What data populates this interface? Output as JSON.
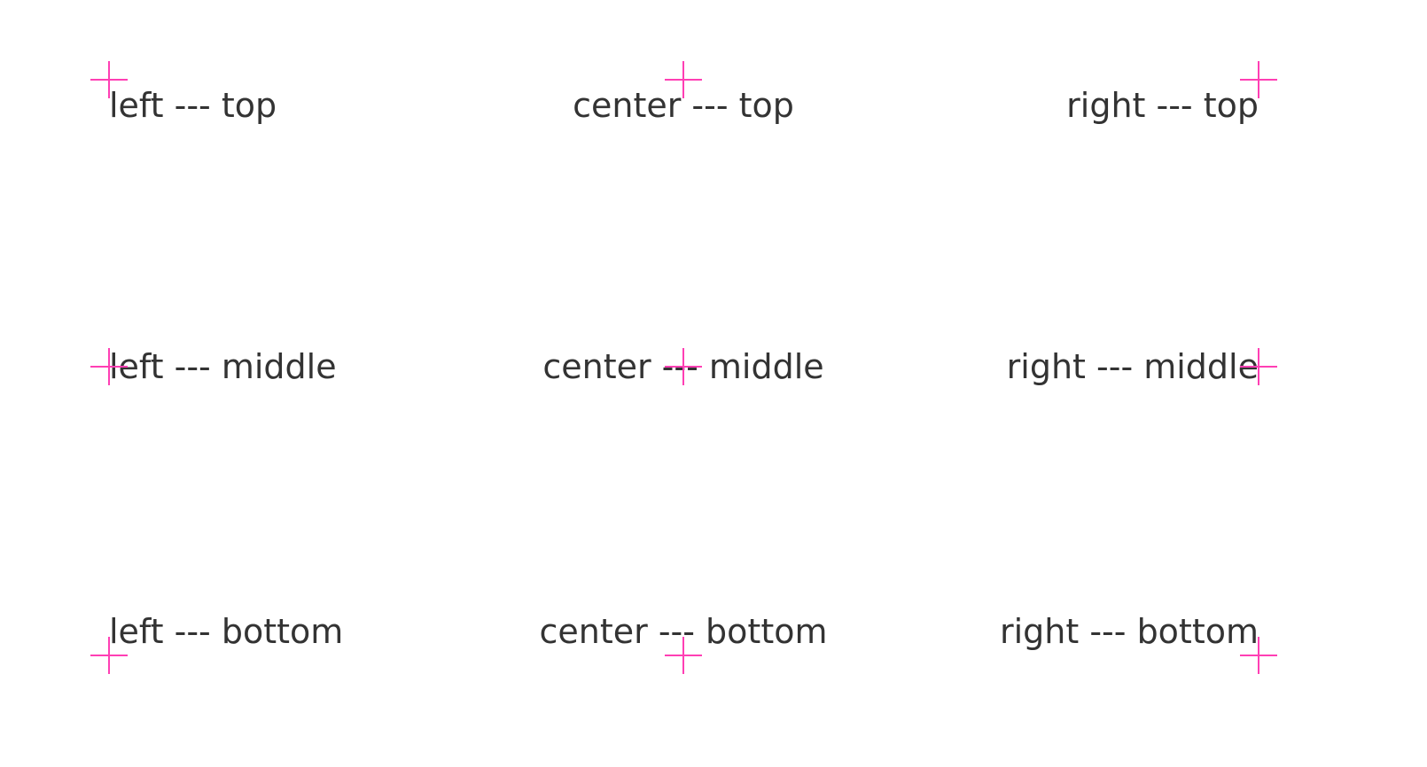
{
  "accent_color": "#ff3fb4",
  "text_color": "#333333",
  "marker_icon": "crosshair-icon",
  "labels": {
    "left_top": "left --- top",
    "center_top": "center --- top",
    "right_top": "right --- top",
    "left_middle": "left --- middle",
    "center_middle": "center --- middle",
    "right_middle": "right --- middle",
    "left_bottom": "left --- bottom",
    "center_bottom": "center --- bottom",
    "right_bottom": "right --- bottom"
  }
}
